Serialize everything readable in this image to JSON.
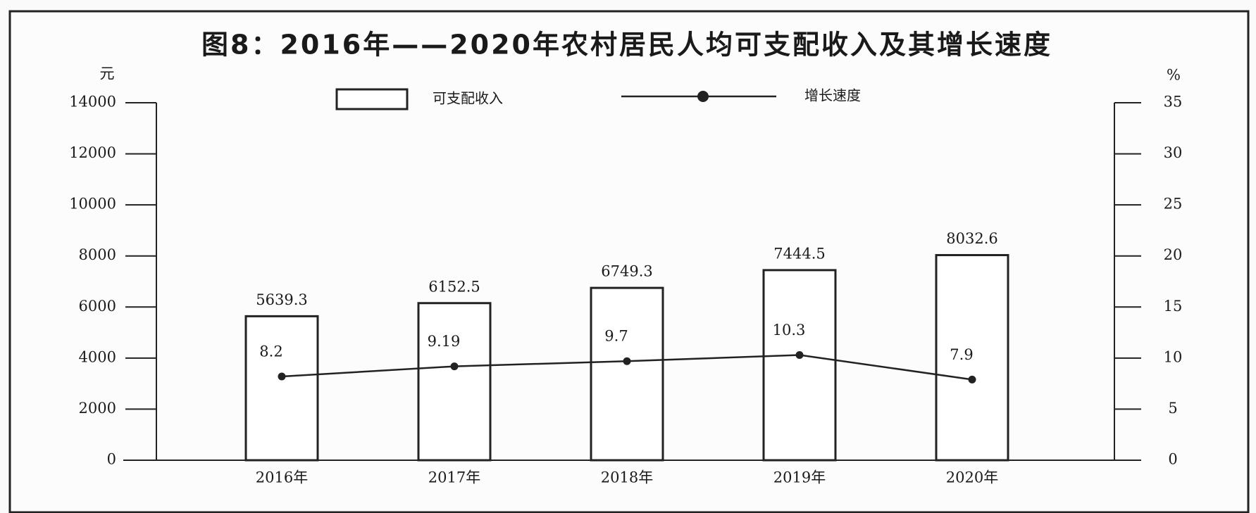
{
  "chart_data": {
    "type": "bar",
    "title": "图8：2016年——2020年农村居民人均可支配收入及其增长速度",
    "y_label": "元",
    "y2_label": "%",
    "categories": [
      "2016年",
      "2017年",
      "2018年",
      "2019年",
      "2020年"
    ],
    "series": [
      {
        "name": "可支配收入",
        "type": "bar",
        "color": "#ffffff",
        "values": [
          5639.3,
          6152.5,
          6749.3,
          7444.5,
          8032.6
        ]
      },
      {
        "name": "增长速度",
        "type": "line",
        "axis": "y2",
        "color": "#222222",
        "values": [
          8.2,
          9.19,
          9.7,
          10.3,
          7.9
        ]
      }
    ],
    "ylim": [
      0,
      14000
    ],
    "yticks": [
      0,
      2000,
      4000,
      6000,
      8000,
      10000,
      12000,
      14000
    ],
    "y2lim": [
      0,
      35
    ],
    "y2ticks": [
      0,
      5,
      10,
      15,
      20,
      25,
      30,
      35
    ]
  }
}
